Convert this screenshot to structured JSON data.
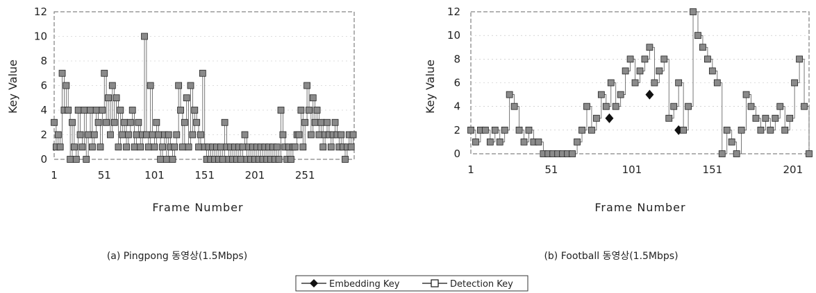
{
  "chart_data": [
    {
      "type": "line",
      "caption": "(a) Pingpong 동영상(1.5Mbps)",
      "xlabel": "Frame Number",
      "ylabel": "Key Value",
      "ylim": [
        0,
        12
      ],
      "yticks": [
        "0",
        "2",
        "4",
        "6",
        "8",
        "10",
        "12"
      ],
      "xlim": [
        1,
        300
      ],
      "xticks": [
        {
          "value": 1,
          "label": "1"
        },
        {
          "value": 51,
          "label": "51"
        },
        {
          "value": 101,
          "label": "101"
        },
        {
          "value": 151,
          "label": "151"
        },
        {
          "value": 201,
          "label": "201"
        },
        {
          "value": 251,
          "label": "251"
        }
      ],
      "series": [
        {
          "name": "Embedding Key",
          "marker": "diamond",
          "color": "#111111",
          "x": [],
          "y": []
        },
        {
          "name": "Detection Key",
          "marker": "square-open",
          "color": "#111111",
          "x": [
            1,
            3,
            5,
            7,
            9,
            11,
            13,
            15,
            17,
            19,
            21,
            23,
            25,
            27,
            29,
            31,
            33,
            35,
            37,
            39,
            41,
            43,
            45,
            47,
            49,
            51,
            53,
            55,
            57,
            59,
            61,
            63,
            65,
            67,
            69,
            71,
            73,
            75,
            77,
            79,
            81,
            83,
            85,
            87,
            89,
            91,
            93,
            95,
            97,
            99,
            101,
            103,
            105,
            107,
            109,
            111,
            113,
            115,
            117,
            119,
            121,
            123,
            125,
            127,
            129,
            131,
            133,
            135,
            137,
            139,
            141,
            143,
            145,
            147,
            149,
            151,
            153,
            155,
            157,
            159,
            161,
            163,
            165,
            167,
            169,
            171,
            173,
            175,
            177,
            179,
            181,
            183,
            185,
            187,
            189,
            191,
            193,
            195,
            197,
            199,
            201,
            203,
            205,
            207,
            209,
            211,
            213,
            215,
            217,
            219,
            221,
            223,
            225,
            227,
            229,
            231,
            233,
            235,
            237,
            239,
            241,
            243,
            245,
            247,
            249,
            251,
            253,
            255,
            257,
            259,
            261,
            263,
            265,
            267,
            269,
            271,
            273,
            275,
            277,
            279,
            281,
            283,
            285,
            287,
            289,
            291,
            293,
            295,
            297,
            299
          ],
          "y": [
            3,
            1,
            2,
            1,
            7,
            4,
            6,
            4,
            0,
            3,
            1,
            0,
            4,
            2,
            1,
            4,
            0,
            2,
            4,
            1,
            2,
            4,
            3,
            1,
            4,
            7,
            3,
            5,
            2,
            6,
            3,
            5,
            1,
            4,
            2,
            3,
            1,
            2,
            3,
            4,
            1,
            2,
            3,
            1,
            2,
            10,
            2,
            1,
            6,
            2,
            1,
            3,
            2,
            0,
            1,
            2,
            0,
            2,
            1,
            0,
            1,
            2,
            6,
            4,
            1,
            3,
            5,
            1,
            6,
            2,
            4,
            3,
            1,
            2,
            7,
            1,
            0,
            1,
            0,
            1,
            0,
            1,
            0,
            1,
            0,
            3,
            1,
            0,
            1,
            0,
            1,
            0,
            1,
            0,
            1,
            2,
            0,
            1,
            0,
            1,
            0,
            1,
            0,
            1,
            0,
            1,
            0,
            1,
            0,
            1,
            0,
            1,
            0,
            4,
            2,
            1,
            0,
            1,
            0,
            1,
            1,
            2,
            2,
            4,
            1,
            3,
            6,
            4,
            2,
            5,
            3,
            4,
            2,
            3,
            1,
            2,
            3,
            2,
            1,
            2,
            3,
            2,
            1,
            2,
            1,
            0,
            1,
            2,
            1,
            2
          ]
        }
      ]
    },
    {
      "type": "line",
      "caption": "(b) Football 동영상(1.5Mbps)",
      "xlabel": "Frame Number",
      "ylabel": "Key Value",
      "ylim": [
        0,
        12
      ],
      "yticks": [
        "0",
        "2",
        "4",
        "6",
        "8",
        "10",
        "12"
      ],
      "xlim": [
        1,
        211
      ],
      "xticks": [
        {
          "value": 1,
          "label": "1"
        },
        {
          "value": 51,
          "label": "51"
        },
        {
          "value": 101,
          "label": "101"
        },
        {
          "value": 151,
          "label": "151"
        },
        {
          "value": 201,
          "label": "201"
        }
      ],
      "series": [
        {
          "name": "Embedding Key",
          "marker": "diamond",
          "color": "#111111",
          "x": [
            87,
            112,
            130
          ],
          "y": [
            3,
            5,
            2
          ]
        },
        {
          "name": "Detection Key",
          "marker": "square-open",
          "color": "#111111",
          "x": [
            1,
            4,
            7,
            10,
            13,
            16,
            19,
            22,
            25,
            28,
            31,
            34,
            37,
            40,
            43,
            46,
            49,
            52,
            55,
            58,
            61,
            64,
            67,
            70,
            73,
            76,
            79,
            82,
            85,
            88,
            91,
            94,
            97,
            100,
            103,
            106,
            109,
            112,
            115,
            118,
            121,
            124,
            127,
            130,
            133,
            136,
            139,
            142,
            145,
            148,
            151,
            154,
            157,
            160,
            163,
            166,
            169,
            172,
            175,
            178,
            181,
            184,
            187,
            190,
            193,
            196,
            199,
            202,
            205,
            208,
            211
          ],
          "y": [
            2,
            1,
            2,
            2,
            1,
            2,
            1,
            2,
            5,
            4,
            2,
            1,
            2,
            1,
            1,
            0,
            0,
            0,
            0,
            0,
            0,
            0,
            1,
            2,
            4,
            2,
            3,
            5,
            4,
            6,
            4,
            5,
            7,
            8,
            6,
            7,
            8,
            9,
            6,
            7,
            8,
            3,
            4,
            6,
            2,
            4,
            12,
            10,
            9,
            8,
            7,
            6,
            0,
            2,
            1,
            0,
            2,
            5,
            4,
            3,
            2,
            3,
            2,
            3,
            4,
            2,
            3,
            6,
            8,
            4,
            0
          ]
        }
      ]
    }
  ],
  "legend": {
    "items": [
      {
        "label": "Embedding Key",
        "marker": "diamond"
      },
      {
        "label": "Detection Key",
        "marker": "square-open"
      }
    ]
  }
}
